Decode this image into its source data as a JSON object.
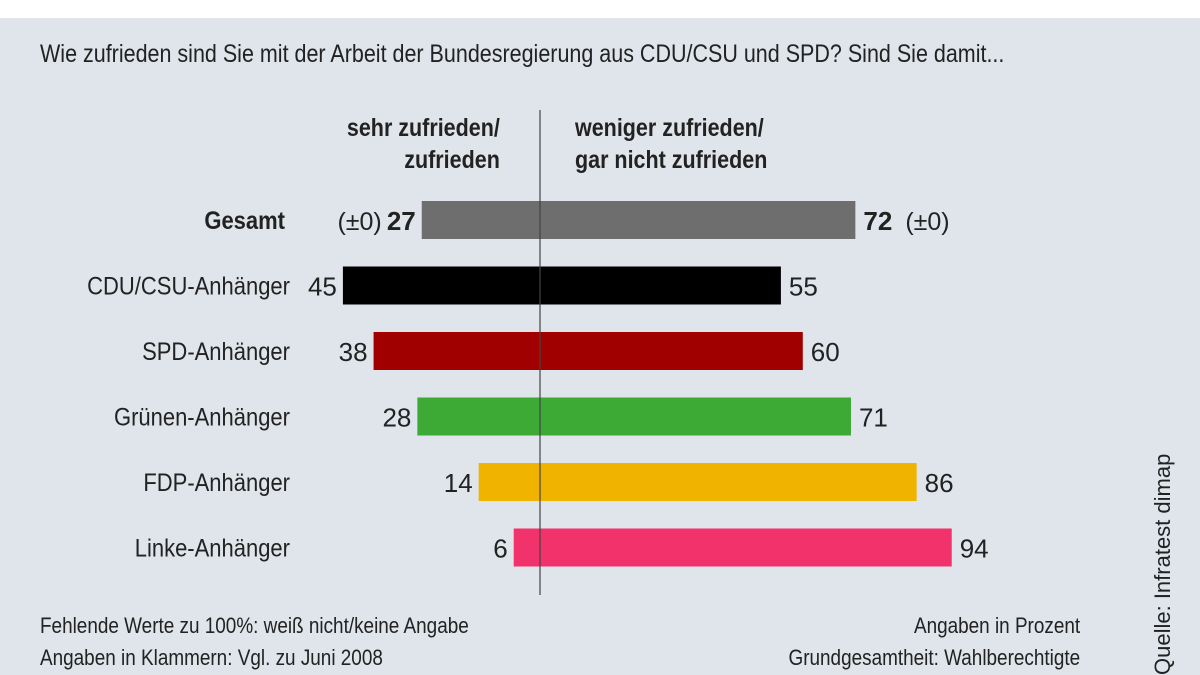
{
  "chart_data": {
    "type": "bar",
    "orientation": "horizontal-diverging",
    "question": "Wie zufrieden sind Sie mit der Arbeit der Bundesregierung aus CDU/CSU und SPD? Sind Sie damit...",
    "left_header": [
      "sehr zufrieden/",
      "zufrieden"
    ],
    "right_header": [
      "weniger zufrieden/",
      "gar nicht zufrieden"
    ],
    "categories": [
      "Gesamt",
      "CDU/CSU-Anhänger",
      "SPD-Anhänger",
      "Grünen-Anhänger",
      "FDP-Anhänger",
      "Linke-Anhänger"
    ],
    "series": [
      {
        "name": "sehr zufrieden/zufrieden",
        "values": [
          27,
          45,
          38,
          28,
          14,
          6
        ]
      },
      {
        "name": "weniger zufrieden/gar nicht zufrieden",
        "values": [
          72,
          55,
          60,
          71,
          86,
          94
        ]
      }
    ],
    "changes": {
      "Gesamt": {
        "left": "(±0)",
        "right": "(±0)"
      }
    },
    "colors": [
      "#6e6e6e",
      "#000000",
      "#a00000",
      "#3caa35",
      "#f0b400",
      "#f2336b"
    ],
    "footnotes_left": [
      "Fehlende Werte zu 100%: weiß nicht/keine Angabe",
      "Angaben in Klammern: Vgl. zu Juni 2008"
    ],
    "footnotes_right": [
      "Angaben in Prozent",
      "Grundgesamtheit: Wahlberechtigte"
    ],
    "source": "Quelle: Infratest dimap"
  }
}
